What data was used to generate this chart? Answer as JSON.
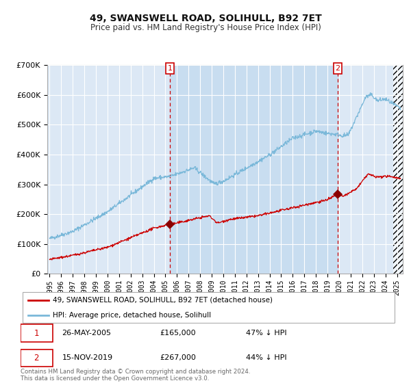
{
  "title": "49, SWANSWELL ROAD, SOLIHULL, B92 7ET",
  "subtitle": "Price paid vs. HM Land Registry's House Price Index (HPI)",
  "background_color": "#ffffff",
  "plot_bg_color": "#dce8f5",
  "grid_color": "#ffffff",
  "hpi_color": "#7ab8d9",
  "price_color": "#cc0000",
  "shade_color": "#c8ddf0",
  "transaction1_date": 2005.4,
  "transaction1_price": 165000,
  "transaction1_label": "1",
  "transaction2_date": 2019.88,
  "transaction2_price": 267000,
  "transaction2_label": "2",
  "xmin": 1994.8,
  "xmax": 2025.5,
  "ymin": 0,
  "ymax": 700000,
  "legend_line1": "49, SWANSWELL ROAD, SOLIHULL, B92 7ET (detached house)",
  "legend_line2": "HPI: Average price, detached house, Solihull",
  "table_row1": [
    "1",
    "26-MAY-2005",
    "£165,000",
    "47% ↓ HPI"
  ],
  "table_row2": [
    "2",
    "15-NOV-2019",
    "£267,000",
    "44% ↓ HPI"
  ],
  "footnote": "Contains HM Land Registry data © Crown copyright and database right 2024.\nThis data is licensed under the Open Government Licence v3.0."
}
